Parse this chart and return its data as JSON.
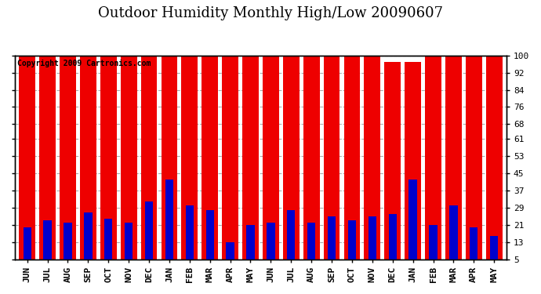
{
  "title": "Outdoor Humidity Monthly High/Low 20090607",
  "copyright": "Copyright 2009 Cartronics.com",
  "categories": [
    "JUN",
    "JUL",
    "AUG",
    "SEP",
    "OCT",
    "NOV",
    "DEC",
    "JAN",
    "FEB",
    "MAR",
    "APR",
    "MAY",
    "JUN",
    "JUL",
    "AUG",
    "SEP",
    "OCT",
    "NOV",
    "DEC",
    "JAN",
    "FEB",
    "MAR",
    "APR",
    "MAY"
  ],
  "high_values": [
    100,
    100,
    100,
    100,
    100,
    100,
    100,
    100,
    100,
    100,
    100,
    100,
    100,
    100,
    100,
    100,
    100,
    100,
    97,
    97,
    100,
    100,
    100,
    100
  ],
  "low_values": [
    20,
    23,
    22,
    27,
    24,
    22,
    32,
    42,
    30,
    28,
    13,
    21,
    22,
    28,
    22,
    25,
    23,
    25,
    26,
    42,
    21,
    30,
    20,
    16
  ],
  "bar_color_high": "#ee0000",
  "bar_color_low": "#0000cc",
  "background_color": "#ffffff",
  "plot_bg_color": "#ffffff",
  "grid_color": "#aaaaaa",
  "yticks": [
    5,
    13,
    21,
    29,
    37,
    45,
    53,
    61,
    68,
    76,
    84,
    92,
    100
  ],
  "ymin": 5,
  "ymax": 100,
  "title_fontsize": 13,
  "tick_fontsize": 8,
  "copyright_fontsize": 7
}
